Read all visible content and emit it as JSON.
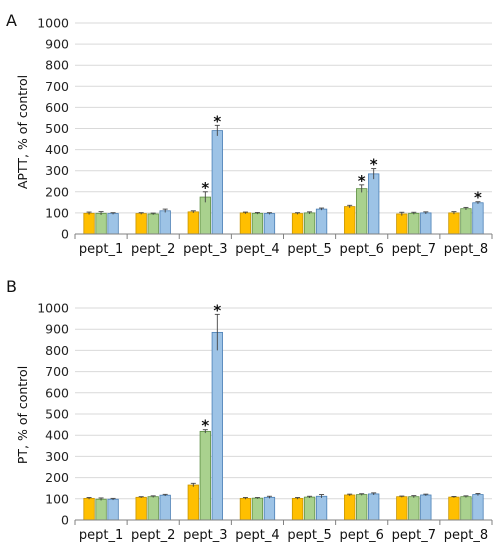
{
  "colors": {
    "series": [
      "#FFBF00",
      "#A9D18E",
      "#9DC3E6"
    ],
    "series_stroke": [
      "#C99500",
      "#5E8F45",
      "#4A7FB5"
    ],
    "grid": "#D9D9D9",
    "axis": "#808080",
    "errorbar": "#444444"
  },
  "chart_data": [
    {
      "panel_label": "A",
      "type": "bar",
      "ylabel": "APTT, % of control",
      "ylim": [
        0,
        1000
      ],
      "yticks": [
        0,
        100,
        200,
        300,
        400,
        500,
        600,
        700,
        800,
        900,
        1000
      ],
      "grid": true,
      "categories": [
        "pept_1",
        "pept_2",
        "pept_3",
        "pept_4",
        "pept_5",
        "pept_6",
        "pept_7",
        "pept_8"
      ],
      "series": [
        {
          "values": [
            98,
            97,
            105,
            100,
            97,
            130,
            95,
            100
          ],
          "errors": [
            6,
            4,
            5,
            4,
            4,
            6,
            8,
            6
          ],
          "significance": [
            "",
            "",
            "",
            "",
            "",
            "",
            "",
            ""
          ]
        },
        {
          "values": [
            98,
            95,
            175,
            98,
            100,
            215,
            98,
            120
          ],
          "errors": [
            8,
            4,
            25,
            4,
            5,
            18,
            5,
            6
          ],
          "significance": [
            "",
            "",
            "*",
            "",
            "",
            "*",
            "",
            ""
          ]
        },
        {
          "values": [
            97,
            110,
            490,
            97,
            118,
            285,
            100,
            148
          ],
          "errors": [
            4,
            8,
            25,
            4,
            5,
            25,
            5,
            5
          ],
          "significance": [
            "",
            "",
            "*",
            "",
            "",
            "*",
            "",
            "*"
          ]
        }
      ]
    },
    {
      "panel_label": "B",
      "type": "bar",
      "ylabel": "PT, % of control",
      "ylim": [
        0,
        1000
      ],
      "yticks": [
        0,
        100,
        200,
        300,
        400,
        500,
        600,
        700,
        800,
        900,
        1000
      ],
      "grid": true,
      "categories": [
        "pept_1",
        "pept_2",
        "pept_3",
        "pept_4",
        "pept_5",
        "pept_6",
        "pept_7",
        "pept_8"
      ],
      "series": [
        {
          "values": [
            102,
            107,
            165,
            102,
            102,
            118,
            110,
            108
          ],
          "errors": [
            4,
            3,
            8,
            4,
            4,
            4,
            3,
            3
          ],
          "significance": [
            "",
            "",
            "",
            "",
            "",
            "",
            "",
            ""
          ]
        },
        {
          "values": [
            98,
            110,
            418,
            103,
            108,
            120,
            110,
            110
          ],
          "errors": [
            6,
            4,
            8,
            3,
            4,
            4,
            5,
            4
          ],
          "significance": [
            "",
            "",
            "*",
            "",
            "",
            "",
            "",
            ""
          ]
        },
        {
          "values": [
            98,
            117,
            885,
            107,
            112,
            123,
            118,
            120
          ],
          "errors": [
            4,
            4,
            85,
            5,
            8,
            5,
            4,
            5
          ],
          "significance": [
            "",
            "",
            "*",
            "",
            "",
            "",
            "",
            ""
          ]
        }
      ]
    }
  ]
}
